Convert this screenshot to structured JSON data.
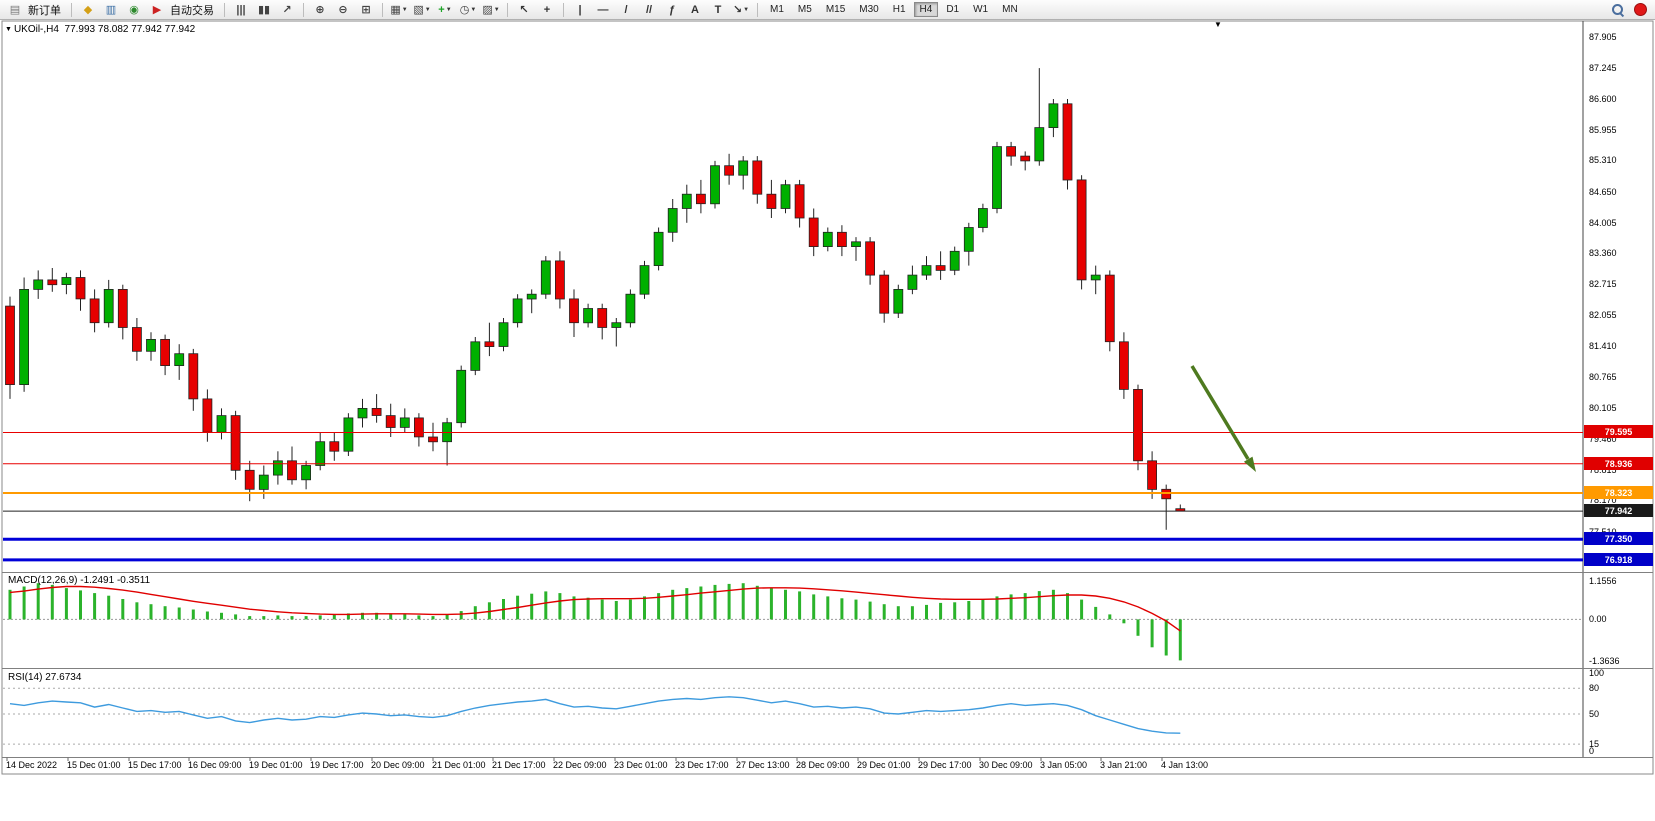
{
  "toolbar": {
    "items": [
      {
        "t": "icon",
        "name": "new-order-icon",
        "glyph": "▤",
        "color": "#777777"
      },
      {
        "t": "label",
        "name": "new-order-label",
        "text": "新订单"
      },
      {
        "t": "sep"
      },
      {
        "t": "icon",
        "name": "charts-stack-icon",
        "glyph": "◆",
        "color": "#D4A017"
      },
      {
        "t": "icon",
        "name": "market-watch-icon",
        "glyph": "▥",
        "color": "#3A6EA5"
      },
      {
        "t": "icon",
        "name": "data-window-icon",
        "glyph": "◉",
        "color": "#2D8A2D"
      },
      {
        "t": "icon",
        "name": "autotrading-icon",
        "glyph": "▶",
        "color": "#CC2222"
      },
      {
        "t": "label",
        "name": "autotrading-label",
        "text": "自动交易"
      },
      {
        "t": "sep"
      },
      {
        "t": "icon",
        "name": "bar-chart-icon",
        "glyph": "|||",
        "color": "#444444"
      },
      {
        "t": "icon",
        "name": "candlestick-chart-icon",
        "glyph": "▮▮",
        "color": "#444444"
      },
      {
        "t": "icon",
        "name": "line-chart-icon",
        "glyph": "↗",
        "color": "#444444"
      },
      {
        "t": "sep"
      },
      {
        "t": "icon",
        "name": "zoom-in-icon",
        "glyph": "⊕",
        "color": "#444444"
      },
      {
        "t": "icon",
        "name": "zoom-out-icon",
        "glyph": "⊖",
        "color": "#444444"
      },
      {
        "t": "icon",
        "name": "tile-windows-icon",
        "glyph": "⊞",
        "color": "#444444"
      },
      {
        "t": "sep"
      },
      {
        "t": "icon",
        "name": "new-chart-icon",
        "glyph": "▦",
        "color": "#444444",
        "caret": true
      },
      {
        "t": "icon",
        "name": "profiles-icon",
        "glyph": "▧",
        "color": "#444444",
        "caret": true
      },
      {
        "t": "icon",
        "name": "indicators-icon",
        "glyph": "+",
        "color": "#1DA427",
        "caret": true
      },
      {
        "t": "icon",
        "name": "periods-icon",
        "glyph": "◷",
        "color": "#444444",
        "caret": true
      },
      {
        "t": "icon",
        "name": "templates-icon",
        "glyph": "▨",
        "color": "#444444",
        "caret": true
      },
      {
        "t": "sep"
      },
      {
        "t": "icon",
        "name": "cursor-icon",
        "glyph": "↖",
        "color": "#333333"
      },
      {
        "t": "icon",
        "name": "crosshair-icon",
        "glyph": "+",
        "color": "#333333"
      },
      {
        "t": "sep"
      },
      {
        "t": "icon",
        "name": "vertical-line-icon",
        "glyph": "|",
        "color": "#333333"
      },
      {
        "t": "icon",
        "name": "horizontal-line-icon",
        "glyph": "—",
        "color": "#333333"
      },
      {
        "t": "icon",
        "name": "trendline-icon",
        "glyph": "/",
        "color": "#333333"
      },
      {
        "t": "icon",
        "name": "equidistant-channel-icon",
        "glyph": "//",
        "color": "#333333"
      },
      {
        "t": "icon",
        "name": "fibonacci-icon",
        "glyph": "ƒ",
        "color": "#333333"
      },
      {
        "t": "icon",
        "name": "text-icon",
        "glyph": "A",
        "color": "#333333"
      },
      {
        "t": "icon",
        "name": "text-label-icon",
        "glyph": "T",
        "color": "#333333"
      },
      {
        "t": "icon",
        "name": "arrow-objects-icon",
        "glyph": "↘",
        "color": "#333333",
        "caret": true
      },
      {
        "t": "sep"
      },
      {
        "t": "timeframes"
      },
      {
        "t": "spacer"
      },
      {
        "t": "icon",
        "name": "search-icon",
        "glyph": "css-magnifier"
      },
      {
        "t": "icon",
        "name": "notification-badge",
        "glyph": "css-red-dot"
      }
    ],
    "timeframes": [
      "M1",
      "M5",
      "M15",
      "M30",
      "H1",
      "H4",
      "D1",
      "W1",
      "MN"
    ],
    "active_timeframe": "H4"
  },
  "chart_header": {
    "expand_marker": "▼",
    "title": "UKOil-,H4",
    "ohlc": "77.993 78.082 77.942 77.942"
  },
  "misc": {
    "shift_marker": "▼",
    "caret_glyph": "▼"
  },
  "annotation_arrow": {
    "type": "arrow",
    "direction": "down-right",
    "color": "#4E7A1F"
  },
  "chart_data": {
    "type": "candlestick",
    "symbol": "UKOil-",
    "timeframe": "H4",
    "y_range": [
      76.6,
      88.05
    ],
    "up_color": "#00B000",
    "down_color": "#E60000",
    "y_axis_labels": [
      "87.905",
      "87.245",
      "86.600",
      "85.955",
      "85.310",
      "84.650",
      "84.005",
      "83.360",
      "82.715",
      "82.055",
      "81.410",
      "80.765",
      "80.105",
      "79.460",
      "78.815",
      "78.170",
      "77.510"
    ],
    "x_labels": [
      "14 Dec 2022",
      "15 Dec 01:00",
      "15 Dec 17:00",
      "16 Dec 09:00",
      "19 Dec 01:00",
      "19 Dec 17:00",
      "20 Dec 09:00",
      "21 Dec 01:00",
      "21 Dec 17:00",
      "22 Dec 09:00",
      "23 Dec 01:00",
      "23 Dec 17:00",
      "27 Dec 13:00",
      "28 Dec 09:00",
      "29 Dec 01:00",
      "29 Dec 17:00",
      "30 Dec 09:00",
      "3 Jan 05:00",
      "3 Jan 21:00",
      "4 Jan 13:00"
    ],
    "horizontal_levels": [
      {
        "price": 79.595,
        "label": "79.595",
        "color": "#E80000",
        "width": 1,
        "tag_bg": "#E00000"
      },
      {
        "price": 78.936,
        "label": "78.936",
        "color": "#E80000",
        "width": 1,
        "tag_bg": "#E00000"
      },
      {
        "price": 78.323,
        "label": "78.323",
        "color": "#FF9A00",
        "width": 2,
        "tag_bg": "#FF9A00"
      },
      {
        "price": 77.942,
        "label": "77.942",
        "color": "#222222",
        "width": 1,
        "tag_bg": "#1A1A1A"
      },
      {
        "price": 77.35,
        "label": "77.350",
        "color": "#0000D8",
        "width": 3,
        "tag_bg": "#0000C8"
      },
      {
        "price": 76.918,
        "label": "76.918",
        "color": "#0000D8",
        "width": 3,
        "tag_bg": "#0000C8"
      }
    ],
    "ohlc": [
      [
        82.25,
        82.45,
        80.3,
        80.6
      ],
      [
        80.6,
        82.85,
        80.45,
        82.6
      ],
      [
        82.6,
        83.0,
        82.4,
        82.8
      ],
      [
        82.8,
        83.05,
        82.55,
        82.7
      ],
      [
        82.7,
        82.95,
        82.5,
        82.85
      ],
      [
        82.85,
        83.0,
        82.15,
        82.4
      ],
      [
        82.4,
        82.6,
        81.7,
        81.9
      ],
      [
        81.9,
        82.8,
        81.8,
        82.6
      ],
      [
        82.6,
        82.7,
        81.55,
        81.8
      ],
      [
        81.8,
        82.0,
        81.1,
        81.3
      ],
      [
        81.3,
        81.7,
        81.1,
        81.55
      ],
      [
        81.55,
        81.65,
        80.8,
        81.0
      ],
      [
        81.0,
        81.45,
        80.7,
        81.25
      ],
      [
        81.25,
        81.35,
        80.05,
        80.3
      ],
      [
        80.3,
        80.5,
        79.4,
        79.6
      ],
      [
        79.6,
        80.1,
        79.45,
        79.95
      ],
      [
        79.95,
        80.05,
        78.6,
        78.8
      ],
      [
        78.8,
        79.0,
        78.15,
        78.4
      ],
      [
        78.4,
        78.9,
        78.2,
        78.7
      ],
      [
        78.7,
        79.2,
        78.5,
        79.0
      ],
      [
        79.0,
        79.3,
        78.5,
        78.6
      ],
      [
        78.6,
        79.0,
        78.4,
        78.9
      ],
      [
        78.9,
        79.6,
        78.8,
        79.4
      ],
      [
        79.4,
        79.6,
        79.0,
        79.2
      ],
      [
        79.2,
        80.0,
        79.1,
        79.9
      ],
      [
        79.9,
        80.3,
        79.7,
        80.1
      ],
      [
        80.1,
        80.4,
        79.8,
        79.95
      ],
      [
        79.95,
        80.2,
        79.5,
        79.7
      ],
      [
        79.7,
        80.1,
        79.6,
        79.9
      ],
      [
        79.9,
        80.0,
        79.3,
        79.5
      ],
      [
        79.5,
        79.8,
        79.2,
        79.4
      ],
      [
        79.4,
        79.9,
        78.9,
        79.8
      ],
      [
        79.8,
        81.0,
        79.7,
        80.9
      ],
      [
        80.9,
        81.6,
        80.8,
        81.5
      ],
      [
        81.5,
        81.9,
        81.2,
        81.4
      ],
      [
        81.4,
        82.0,
        81.3,
        81.9
      ],
      [
        81.9,
        82.5,
        81.8,
        82.4
      ],
      [
        82.4,
        82.6,
        82.1,
        82.5
      ],
      [
        82.5,
        83.3,
        82.4,
        83.2
      ],
      [
        83.2,
        83.4,
        82.2,
        82.4
      ],
      [
        82.4,
        82.6,
        81.6,
        81.9
      ],
      [
        81.9,
        82.3,
        81.8,
        82.2
      ],
      [
        82.2,
        82.3,
        81.55,
        81.8
      ],
      [
        81.8,
        82.0,
        81.4,
        81.9
      ],
      [
        81.9,
        82.6,
        81.8,
        82.5
      ],
      [
        82.5,
        83.2,
        82.4,
        83.1
      ],
      [
        83.1,
        83.9,
        83.0,
        83.8
      ],
      [
        83.8,
        84.5,
        83.6,
        84.3
      ],
      [
        84.3,
        84.8,
        84.0,
        84.6
      ],
      [
        84.6,
        84.9,
        84.2,
        84.4
      ],
      [
        84.4,
        85.3,
        84.3,
        85.2
      ],
      [
        85.2,
        85.45,
        84.8,
        85.0
      ],
      [
        85.0,
        85.4,
        84.7,
        85.3
      ],
      [
        85.3,
        85.4,
        84.4,
        84.6
      ],
      [
        84.6,
        84.9,
        84.1,
        84.3
      ],
      [
        84.3,
        84.9,
        84.2,
        84.8
      ],
      [
        84.8,
        84.9,
        83.9,
        84.1
      ],
      [
        84.1,
        84.3,
        83.3,
        83.5
      ],
      [
        83.5,
        83.9,
        83.4,
        83.8
      ],
      [
        83.8,
        83.95,
        83.3,
        83.5
      ],
      [
        83.5,
        83.7,
        83.2,
        83.6
      ],
      [
        83.6,
        83.7,
        82.7,
        82.9
      ],
      [
        82.9,
        83.0,
        81.9,
        82.1
      ],
      [
        82.1,
        82.7,
        82.0,
        82.6
      ],
      [
        82.6,
        83.1,
        82.5,
        82.9
      ],
      [
        82.9,
        83.3,
        82.8,
        83.1
      ],
      [
        83.1,
        83.4,
        82.8,
        83.0
      ],
      [
        83.0,
        83.5,
        82.9,
        83.4
      ],
      [
        83.4,
        84.0,
        83.1,
        83.9
      ],
      [
        83.9,
        84.4,
        83.8,
        84.3
      ],
      [
        84.3,
        85.7,
        84.2,
        85.6
      ],
      [
        85.6,
        85.7,
        85.2,
        85.4
      ],
      [
        85.4,
        85.5,
        85.1,
        85.3
      ],
      [
        85.3,
        87.25,
        85.2,
        86.0
      ],
      [
        86.0,
        86.6,
        85.8,
        86.5
      ],
      [
        86.5,
        86.6,
        84.7,
        84.9
      ],
      [
        84.9,
        85.0,
        82.6,
        82.8
      ],
      [
        82.8,
        83.1,
        82.5,
        82.9
      ],
      [
        82.9,
        83.0,
        81.3,
        81.5
      ],
      [
        81.5,
        81.7,
        80.3,
        80.5
      ],
      [
        80.5,
        80.6,
        78.8,
        79.0
      ],
      [
        79.0,
        79.2,
        78.2,
        78.4
      ],
      [
        78.4,
        78.5,
        77.55,
        78.2
      ],
      [
        77.993,
        78.082,
        77.942,
        77.942
      ]
    ],
    "macd": {
      "label": "MACD(12,26,9)",
      "values": "-1.2491 -0.3511",
      "scale_labels": [
        "1.1556",
        "0.00",
        "-1.3636"
      ],
      "hist_color": "#2BB32B",
      "signal_color": "#E00000",
      "histogram": [
        0.9,
        1.0,
        1.1,
        1.05,
        0.95,
        0.88,
        0.8,
        0.72,
        0.62,
        0.52,
        0.46,
        0.4,
        0.36,
        0.3,
        0.24,
        0.2,
        0.15,
        0.1,
        0.1,
        0.12,
        0.1,
        0.1,
        0.12,
        0.15,
        0.18,
        0.2,
        0.2,
        0.18,
        0.15,
        0.12,
        0.1,
        0.15,
        0.25,
        0.4,
        0.52,
        0.62,
        0.72,
        0.78,
        0.85,
        0.8,
        0.7,
        0.66,
        0.6,
        0.56,
        0.6,
        0.7,
        0.8,
        0.9,
        0.95,
        1.0,
        1.05,
        1.08,
        1.1,
        1.02,
        0.95,
        0.9,
        0.85,
        0.76,
        0.7,
        0.64,
        0.6,
        0.54,
        0.46,
        0.4,
        0.4,
        0.44,
        0.5,
        0.52,
        0.56,
        0.62,
        0.7,
        0.76,
        0.8,
        0.86,
        0.9,
        0.8,
        0.6,
        0.38,
        0.15,
        -0.12,
        -0.5,
        -0.85,
        -1.1,
        -1.2491
      ],
      "signal": [
        0.82,
        0.86,
        0.92,
        0.97,
        1.0,
        1.0,
        0.98,
        0.94,
        0.89,
        0.83,
        0.76,
        0.69,
        0.62,
        0.55,
        0.49,
        0.43,
        0.37,
        0.31,
        0.27,
        0.23,
        0.2,
        0.18,
        0.16,
        0.15,
        0.15,
        0.16,
        0.17,
        0.17,
        0.17,
        0.16,
        0.15,
        0.15,
        0.16,
        0.19,
        0.24,
        0.3,
        0.36,
        0.43,
        0.5,
        0.56,
        0.6,
        0.62,
        0.63,
        0.63,
        0.63,
        0.64,
        0.67,
        0.71,
        0.75,
        0.8,
        0.84,
        0.88,
        0.92,
        0.95,
        0.96,
        0.96,
        0.95,
        0.93,
        0.9,
        0.87,
        0.83,
        0.79,
        0.75,
        0.71,
        0.67,
        0.64,
        0.62,
        0.61,
        0.61,
        0.61,
        0.62,
        0.64,
        0.66,
        0.69,
        0.72,
        0.74,
        0.74,
        0.71,
        0.64,
        0.53,
        0.38,
        0.18,
        -0.05,
        -0.3511
      ]
    },
    "rsi": {
      "label": "RSI(14)",
      "value": "27.6734",
      "scale_labels": [
        "100",
        "80",
        "50",
        "15",
        "0"
      ],
      "levels": [
        80,
        50,
        15
      ],
      "line_color": "#3E9BDE",
      "values": [
        62,
        60,
        63,
        65,
        64,
        63,
        58,
        61,
        57,
        53,
        54,
        52,
        53,
        49,
        45,
        47,
        42,
        40,
        43,
        45,
        43,
        44,
        47,
        46,
        49,
        51,
        50,
        48,
        49,
        47,
        46,
        48,
        53,
        57,
        60,
        62,
        64,
        65,
        67,
        62,
        58,
        59,
        57,
        56,
        59,
        62,
        65,
        67,
        68,
        67,
        69,
        70,
        69,
        66,
        63,
        65,
        62,
        58,
        59,
        57,
        58,
        56,
        51,
        50,
        52,
        54,
        53,
        54,
        55,
        57,
        60,
        62,
        60,
        61,
        62,
        60,
        55,
        48,
        43,
        38,
        33,
        30,
        28,
        27.6734
      ]
    }
  }
}
